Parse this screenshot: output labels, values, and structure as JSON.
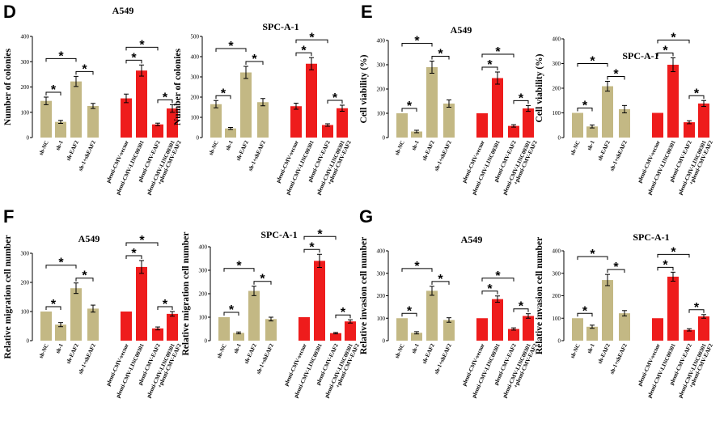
{
  "panel_letters": [
    "D",
    "E",
    "F",
    "G"
  ],
  "colors": {
    "tan": "#c3b884",
    "red": "#ee1c1c"
  },
  "categories_left": [
    "sh-NC",
    "sh-1",
    "sh-EAF2",
    "sh-1+shEAF2"
  ],
  "categories_right": [
    "plenti-CMV-vector",
    "plenti-CMV-LINC00301",
    "plenti-CMV-EAF2",
    "plenti-CMV-LINC00301",
    "+plenti-CMV-EAF2"
  ],
  "chart_data": [
    {
      "type": "bar",
      "panel": "D",
      "title": "A549",
      "ylabel": "Number of colonies",
      "ylim": [
        0,
        400
      ],
      "yticks": [
        "0",
        "100",
        "200",
        "300",
        "400"
      ],
      "values": [
        145,
        62,
        222,
        125,
        155,
        265,
        52,
        115
      ],
      "errors": [
        15,
        6,
        20,
        10,
        17,
        22,
        5,
        15
      ],
      "sig": [
        [
          0,
          1,
          "*"
        ],
        [
          0,
          2,
          "*"
        ],
        [
          2,
          3,
          "*"
        ],
        [
          4,
          5,
          "*"
        ],
        [
          4,
          6,
          "*"
        ],
        [
          6,
          7,
          "*"
        ]
      ]
    },
    {
      "type": "bar",
      "panel": "D",
      "title": "SPC-A-1",
      "ylabel": "Number of colonies",
      "ylim": [
        0,
        500
      ],
      "yticks": [
        "0",
        "100",
        "200",
        "300",
        "400",
        "500"
      ],
      "values": [
        165,
        45,
        322,
        175,
        155,
        365,
        62,
        145
      ],
      "errors": [
        18,
        5,
        30,
        18,
        15,
        30,
        6,
        15
      ],
      "sig": [
        [
          0,
          1,
          "*"
        ],
        [
          0,
          2,
          "*"
        ],
        [
          2,
          3,
          "*"
        ],
        [
          4,
          5,
          "*"
        ],
        [
          4,
          6,
          "*"
        ],
        [
          6,
          7,
          "*"
        ]
      ]
    },
    {
      "type": "bar",
      "panel": "E",
      "title": "A549",
      "ylabel": "Cell viability (%)",
      "ylim": [
        0,
        400
      ],
      "yticks": [
        "0",
        "100",
        "200",
        "300",
        "400"
      ],
      "values": [
        100,
        25,
        290,
        140,
        100,
        245,
        48,
        120
      ],
      "errors": [
        0,
        5,
        25,
        15,
        0,
        25,
        5,
        12
      ],
      "sig": [
        [
          0,
          1,
          "*"
        ],
        [
          0,
          2,
          "*"
        ],
        [
          2,
          3,
          "*"
        ],
        [
          4,
          5,
          "*"
        ],
        [
          4,
          6,
          "*"
        ],
        [
          6,
          7,
          "*"
        ]
      ]
    },
    {
      "type": "bar",
      "panel": "E",
      "title": "SPC-A-1",
      "ylabel": "Cell viability (%)",
      "ylim": [
        0,
        400
      ],
      "yticks": [
        "0",
        "100",
        "200",
        "300",
        "400"
      ],
      "values": [
        100,
        45,
        208,
        115,
        100,
        295,
        62,
        138
      ],
      "errors": [
        0,
        6,
        20,
        15,
        0,
        28,
        6,
        12
      ],
      "sig": [
        [
          0,
          1,
          "*"
        ],
        [
          0,
          2,
          "*"
        ],
        [
          2,
          3,
          "*"
        ],
        [
          4,
          5,
          "*"
        ],
        [
          4,
          6,
          "*"
        ],
        [
          6,
          7,
          "*"
        ]
      ]
    },
    {
      "type": "bar",
      "panel": "F",
      "title": "A549",
      "ylabel": "Relative migration cell number",
      "ylim": [
        0,
        300
      ],
      "yticks": [
        "0",
        "100",
        "200",
        "300"
      ],
      "values": [
        100,
        55,
        180,
        110,
        100,
        253,
        42,
        92
      ],
      "errors": [
        0,
        7,
        18,
        12,
        0,
        22,
        5,
        8
      ],
      "sig": [
        [
          0,
          1,
          "*"
        ],
        [
          0,
          2,
          "*"
        ],
        [
          2,
          3,
          "*"
        ],
        [
          4,
          5,
          "*"
        ],
        [
          4,
          6,
          "*"
        ],
        [
          6,
          7,
          "*"
        ]
      ]
    },
    {
      "type": "bar",
      "panel": "F",
      "title": "SPC-A-1",
      "ylabel": "Relative migration cell number",
      "ylim": [
        0,
        400
      ],
      "yticks": [
        "0",
        "100",
        "200",
        "300",
        "400"
      ],
      "values": [
        100,
        33,
        212,
        92,
        100,
        340,
        32,
        82
      ],
      "errors": [
        0,
        4,
        20,
        8,
        0,
        28,
        3,
        7
      ],
      "sig": [
        [
          0,
          1,
          "*"
        ],
        [
          0,
          2,
          "*"
        ],
        [
          2,
          3,
          "*"
        ],
        [
          4,
          5,
          "*"
        ],
        [
          4,
          6,
          "*"
        ],
        [
          6,
          7,
          "*"
        ]
      ]
    },
    {
      "type": "bar",
      "panel": "G",
      "title": "A549",
      "ylabel": "Relative invasion cell number",
      "ylim": [
        0,
        400
      ],
      "yticks": [
        "0",
        "100",
        "200",
        "300",
        "400"
      ],
      "values": [
        100,
        35,
        222,
        92,
        100,
        185,
        52,
        110
      ],
      "errors": [
        0,
        5,
        20,
        10,
        0,
        14,
        5,
        10
      ],
      "sig": [
        [
          0,
          1,
          "*"
        ],
        [
          0,
          2,
          "*"
        ],
        [
          2,
          3,
          "*"
        ],
        [
          4,
          5,
          "*"
        ],
        [
          4,
          6,
          "*"
        ],
        [
          6,
          7,
          "*"
        ]
      ]
    },
    {
      "type": "bar",
      "panel": "G",
      "title": "SPC-A-1",
      "ylabel": "Relative invasion cell number",
      "ylim": [
        0,
        400
      ],
      "yticks": [
        "0",
        "100",
        "200",
        "300",
        "400"
      ],
      "values": [
        100,
        62,
        270,
        122,
        100,
        285,
        48,
        108
      ],
      "errors": [
        0,
        7,
        25,
        12,
        0,
        20,
        5,
        8
      ],
      "sig": [
        [
          0,
          1,
          "*"
        ],
        [
          0,
          2,
          "*"
        ],
        [
          2,
          3,
          "*"
        ],
        [
          4,
          5,
          "*"
        ],
        [
          4,
          6,
          "*"
        ],
        [
          6,
          7,
          "*"
        ]
      ]
    }
  ]
}
